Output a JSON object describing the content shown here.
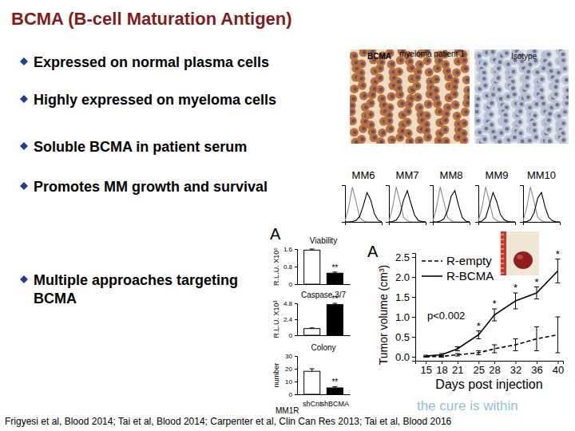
{
  "title": "BCMA (B-cell Maturation Antigen)",
  "bullets": [
    "Expressed on normal plasma cells",
    "Highly expressed on myeloma cells",
    "Soluble BCMA in patient serum",
    "Promotes MM growth and survival",
    "Multiple approaches targeting BCMA"
  ],
  "ihc": {
    "stain_label": "BCMA",
    "sample_label": "myeloma patient 1",
    "control_label": "Isotype"
  },
  "panel_labels": [
    "A",
    "A"
  ],
  "logo_text": "the cure is within",
  "citation": "Frigyesi et al, Blood 2014; Tai et al, Blood 2014; Carpenter et al, Clin Can Res 2013; Tai et al, Blood 2016",
  "chart_data": [
    {
      "type": "line",
      "title": "MM6",
      "x": [
        0,
        1,
        2,
        3,
        4,
        5,
        6,
        7,
        8,
        9,
        10
      ],
      "xlim": [
        0,
        10
      ],
      "ylim": [
        0,
        100
      ],
      "tick_labels": false,
      "series": [
        {
          "color": "#888888",
          "values": [
            2,
            40,
            95,
            55,
            12,
            3,
            0,
            0,
            0,
            0,
            0
          ]
        },
        {
          "color": "#000000",
          "values": [
            0,
            0,
            1,
            4,
            15,
            45,
            80,
            60,
            22,
            5,
            0
          ]
        }
      ]
    },
    {
      "type": "line",
      "title": "MM7",
      "x": [
        0,
        1,
        2,
        3,
        4,
        5,
        6,
        7,
        8,
        9,
        10
      ],
      "xlim": [
        0,
        10
      ],
      "ylim": [
        0,
        100
      ],
      "tick_labels": false,
      "series": [
        {
          "color": "#888888",
          "values": [
            2,
            40,
            95,
            55,
            12,
            3,
            0,
            0,
            0,
            0,
            0
          ]
        },
        {
          "color": "#000000",
          "values": [
            0,
            1,
            5,
            20,
            60,
            85,
            50,
            18,
            4,
            1,
            0
          ]
        }
      ]
    },
    {
      "type": "line",
      "title": "MM8",
      "x": [
        0,
        1,
        2,
        3,
        4,
        5,
        6,
        7,
        8,
        9,
        10
      ],
      "xlim": [
        0,
        10
      ],
      "ylim": [
        0,
        100
      ],
      "tick_labels": false,
      "series": [
        {
          "color": "#888888",
          "values": [
            2,
            40,
            95,
            55,
            12,
            3,
            0,
            0,
            0,
            0,
            0
          ]
        },
        {
          "color": "#000000",
          "values": [
            0,
            0,
            2,
            8,
            30,
            70,
            85,
            45,
            12,
            2,
            0
          ]
        }
      ]
    },
    {
      "type": "line",
      "title": "MM9",
      "x": [
        0,
        1,
        2,
        3,
        4,
        5,
        6,
        7,
        8,
        9,
        10
      ],
      "xlim": [
        0,
        10
      ],
      "ylim": [
        0,
        100
      ],
      "tick_labels": false,
      "series": [
        {
          "color": "#888888",
          "values": [
            2,
            40,
            95,
            55,
            12,
            3,
            0,
            0,
            0,
            0,
            0
          ]
        },
        {
          "color": "#000000",
          "values": [
            0,
            2,
            12,
            45,
            80,
            55,
            20,
            6,
            1,
            0,
            0
          ]
        }
      ]
    },
    {
      "type": "line",
      "title": "MM10",
      "x": [
        0,
        1,
        2,
        3,
        4,
        5,
        6,
        7,
        8,
        9,
        10
      ],
      "xlim": [
        0,
        10
      ],
      "ylim": [
        0,
        100
      ],
      "tick_labels": false,
      "series": [
        {
          "color": "#888888",
          "values": [
            2,
            40,
            95,
            55,
            12,
            3,
            0,
            0,
            0,
            0,
            0
          ]
        },
        {
          "color": "#000000",
          "values": [
            0,
            1,
            6,
            25,
            65,
            80,
            40,
            12,
            3,
            0,
            0
          ]
        }
      ]
    },
    {
      "type": "bar",
      "title": "Viability",
      "ylabel": "R.L.U. X10⁵",
      "categories": [
        "shCnt",
        "shBCMA"
      ],
      "values": [
        1.55,
        0.5
      ],
      "errors": [
        0.05,
        0.05
      ],
      "significance": [
        null,
        "**"
      ],
      "colors": [
        "#ffffff",
        "#000000"
      ],
      "ylim": [
        0,
        1.6
      ],
      "yticks": [
        0,
        0.8,
        1.6
      ],
      "tick_labels": "y"
    },
    {
      "type": "bar",
      "title": "Caspase 3/7",
      "ylabel": "R.L.U. X10³",
      "categories": [
        "shCnt",
        "shBCMA"
      ],
      "values": [
        1.0,
        4.6
      ],
      "errors": [
        0.1,
        0.2
      ],
      "significance": [
        null,
        "**"
      ],
      "colors": [
        "#ffffff",
        "#000000"
      ],
      "ylim": [
        0,
        4.8
      ],
      "yticks": [
        0,
        2.4,
        4.8
      ],
      "tick_labels": "y"
    },
    {
      "type": "bar",
      "title": "Colony",
      "ylabel": "number",
      "xlabel": "MM1R",
      "categories": [
        "shCnt",
        "shBCMA"
      ],
      "values": [
        18,
        5
      ],
      "errors": [
        2,
        1
      ],
      "significance": [
        null,
        "**"
      ],
      "colors": [
        "#ffffff",
        "#000000"
      ],
      "ylim": [
        0,
        30
      ],
      "yticks": [
        0,
        10,
        20,
        30
      ]
    },
    {
      "type": "line",
      "xlabel": "Days post injection",
      "ylabel": "Tumor volume (cm³)",
      "x": [
        15,
        18,
        21,
        25,
        28,
        32,
        36,
        40
      ],
      "xlim": [
        13,
        41
      ],
      "xticks": [
        15,
        18,
        21,
        25,
        28,
        32,
        36,
        40
      ],
      "ylim": [
        -0.1,
        2.6
      ],
      "yticks": [
        {
          "value": 0,
          "label": "0.0"
        },
        0.5,
        {
          "value": 1,
          "label": "1.0"
        },
        1.5,
        {
          "value": 2,
          "label": "2.0"
        },
        2.5
      ],
      "legend": "upper left",
      "annotations": [
        "p<0.002"
      ],
      "series": [
        {
          "name": "R-empty",
          "color": "#000000",
          "line_style": "dashed",
          "values": [
            0,
            0.01,
            0.05,
            0.1,
            0.2,
            0.3,
            0.45,
            0.55
          ],
          "errors": [
            0.01,
            0.02,
            0.03,
            0.05,
            0.1,
            0.15,
            0.3,
            0.45
          ]
        },
        {
          "name": "R-BCMA",
          "color": "#000000",
          "line_style": "solid",
          "values": [
            0.02,
            0.05,
            0.2,
            0.55,
            1.05,
            1.4,
            1.6,
            2.15
          ],
          "errors": [
            0.02,
            0.03,
            0.05,
            0.1,
            0.15,
            0.2,
            0.15,
            0.3
          ],
          "significance": [
            null,
            null,
            null,
            "*",
            "*",
            "*",
            "*",
            "*"
          ]
        }
      ]
    }
  ]
}
